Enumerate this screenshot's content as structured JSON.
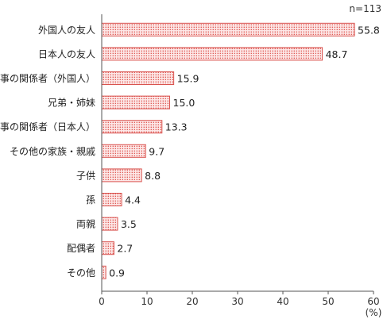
{
  "chart_data": {
    "type": "bar",
    "orientation": "horizontal",
    "note": "n=113",
    "categories": [
      "外国人の友人",
      "日本人の友人",
      "仕事の関係者（外国人）",
      "兄弟・姉妹",
      "仕事の関係者（日本人）",
      "その他の家族・親戚",
      "子供",
      "孫",
      "両親",
      "配偶者",
      "その他"
    ],
    "values": [
      55.8,
      48.7,
      15.9,
      15.0,
      13.3,
      9.7,
      8.8,
      4.4,
      3.5,
      2.7,
      0.9
    ],
    "value_labels": [
      "55.8",
      "48.7",
      "15.9",
      "15.0",
      "13.3",
      "9.7",
      "8.8",
      "4.4",
      "3.5",
      "2.7",
      "0.9"
    ],
    "xlim": [
      0,
      60
    ],
    "x_ticks": [
      "0",
      "10",
      "20",
      "30",
      "40",
      "50",
      "60"
    ],
    "x_unit": "(%)",
    "grid": false,
    "colors": {
      "bar_fill": "#fde8e8",
      "bar_dot": "#e0605a",
      "bar_stroke": "#d9534f",
      "axis": "#555555"
    }
  }
}
